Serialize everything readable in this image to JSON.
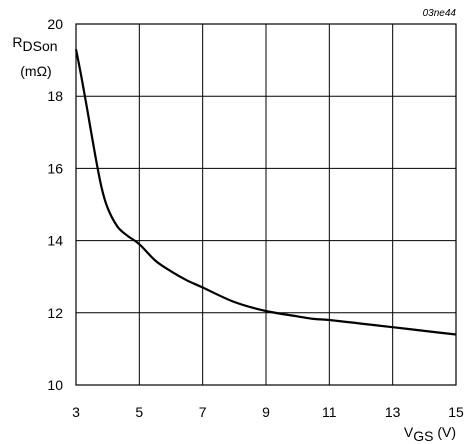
{
  "chart_data": {
    "type": "line",
    "figure_id": "03ne44",
    "ylabel": {
      "main": "R",
      "sub": "DSon",
      "unit": "(mΩ)"
    },
    "xlabel": {
      "main": "V",
      "sub": "GS",
      "unit": " (V)"
    },
    "xlim": [
      3,
      15
    ],
    "ylim": [
      10,
      20
    ],
    "x_ticks": [
      3,
      5,
      7,
      9,
      11,
      13,
      15
    ],
    "y_ticks": [
      10,
      12,
      14,
      16,
      18,
      20
    ],
    "grid": true,
    "series": [
      {
        "x": [
          3.0,
          3.2,
          3.4,
          3.6,
          3.8,
          4.0,
          4.3,
          4.6,
          5.0,
          5.5,
          6.0,
          6.5,
          7.0,
          8.0,
          9.0,
          10.0,
          10.5,
          11.0,
          12.0,
          13.0,
          14.0,
          15.0
        ],
        "y": [
          19.3,
          18.4,
          17.4,
          16.4,
          15.5,
          14.9,
          14.4,
          14.15,
          13.9,
          13.45,
          13.15,
          12.9,
          12.7,
          12.3,
          12.05,
          11.9,
          11.83,
          11.8,
          11.7,
          11.6,
          11.5,
          11.4
        ]
      }
    ]
  }
}
